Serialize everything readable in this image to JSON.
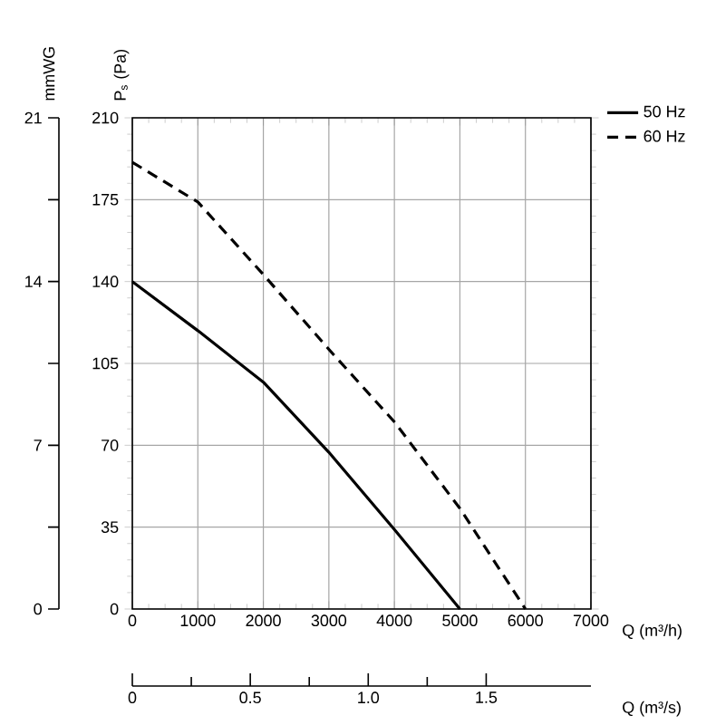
{
  "chart_data": {
    "type": "line",
    "xlabel": "Q (m³/h)",
    "ylabel": "P$_{s}$ (Pa)",
    "y2label": "mmWG",
    "x2label": "Q (m³/s)",
    "series": [
      {
        "name": "50 Hz",
        "color": "#000000",
        "line_style": "solid",
        "x": [
          0,
          1000,
          2000,
          3000,
          4000,
          5000
        ],
        "values": [
          140,
          119,
          97,
          67,
          34,
          0
        ]
      },
      {
        "name": "60 Hz",
        "color": "#000000",
        "line_style": "dashed",
        "x": [
          0,
          1000,
          2000,
          3000,
          4000,
          5000,
          6000
        ],
        "values": [
          191,
          174,
          143,
          111,
          80,
          43,
          0
        ]
      }
    ],
    "xlim": [
      0,
      7000
    ],
    "xticks": [
      0,
      1000,
      2000,
      3000,
      4000,
      5000,
      6000,
      7000
    ],
    "ylim": [
      0,
      210
    ],
    "yticks": [
      0,
      35,
      70,
      105,
      140,
      175,
      210
    ],
    "y2lim": [
      0,
      21
    ],
    "y2ticks": [
      0,
      7,
      14,
      21
    ],
    "x2lim": [
      0,
      1.944
    ],
    "x2ticks": [
      0,
      0.5,
      {
        "value": 1.0,
        "label": "1.0"
      },
      1.5
    ],
    "grid": true,
    "legend": "top right",
    "marker": "none"
  }
}
